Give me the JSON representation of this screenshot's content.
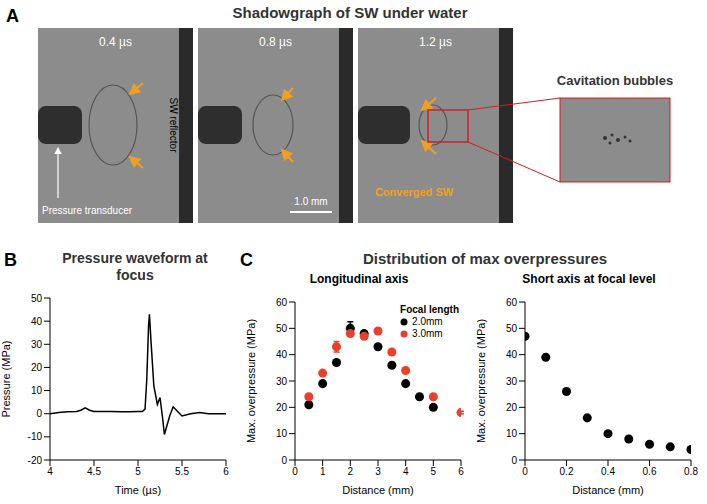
{
  "figure": {
    "letters": [
      "A",
      "B",
      "C"
    ],
    "panel_a": {
      "title": "Shadowgraph of SW under water",
      "frames": [
        "0.4 µs",
        "0.8 µs",
        "1.2 µs"
      ],
      "inset_title": "Cavitation bubbles",
      "transducer": "Pressure transducer",
      "reflector": "SW reflector",
      "scale_bar": "1.0 mm",
      "converged": "Converged SW"
    },
    "panel_c_title": "Distribution of max overpressures"
  },
  "chart_data": [
    {
      "type": "line",
      "title": "Pressure waveform at focus",
      "x_label": "Time (µs)",
      "y_label": "Pressure (MPa)",
      "x": [
        4.0,
        4.1,
        4.2,
        4.3,
        4.35,
        4.4,
        4.45,
        4.5,
        4.6,
        4.7,
        4.8,
        4.9,
        5.0,
        5.05,
        5.08,
        5.1,
        5.12,
        5.13,
        5.15,
        5.18,
        5.2,
        5.22,
        5.25,
        5.28,
        5.3,
        5.33,
        5.36,
        5.4,
        5.45,
        5.5,
        5.6,
        5.7,
        5.8,
        5.9,
        6.0
      ],
      "values": [
        0,
        0.5,
        0.8,
        1,
        1.5,
        2.5,
        1.5,
        1,
        1,
        1,
        0.8,
        0.8,
        1,
        1,
        2,
        15,
        38,
        43,
        30,
        12,
        8,
        4,
        7,
        -2,
        -9,
        -5,
        -1,
        3,
        1,
        -1,
        0,
        0.5,
        0,
        0,
        0
      ],
      "color": "#000000",
      "xlim": [
        4,
        6
      ],
      "xticks": [
        4,
        4.5,
        5,
        5.5,
        6
      ],
      "ylim": [
        -20,
        50
      ],
      "yticks": [
        -20,
        -10,
        0,
        10,
        20,
        30,
        40,
        50
      ],
      "grid": false
    },
    {
      "type": "scatter",
      "title": "Longitudinal axis",
      "x_label": "Distance (mm)",
      "y_label": "Max. overpressure (MPa)",
      "legend": "upper right",
      "legend_title": "Focal length",
      "series": [
        {
          "name": "2.0mm",
          "color": "#000000",
          "marker": "circle",
          "x": [
            0.5,
            1,
            1.5,
            2,
            2.5,
            3,
            3.5,
            4,
            4.5,
            5
          ],
          "values": [
            21,
            29,
            37,
            50,
            48,
            43,
            36,
            29,
            24,
            20
          ],
          "errors": [
            0.5,
            0.5,
            0.8,
            2.5,
            1,
            0.5,
            0.5,
            0.5,
            0.5,
            0.5
          ]
        },
        {
          "name": "3.0mm",
          "color": "#e8402a",
          "marker": "circle",
          "x": [
            0.5,
            1,
            1.5,
            2,
            2.5,
            3,
            3.5,
            4,
            5,
            6
          ],
          "values": [
            24,
            33,
            43,
            48,
            47,
            49,
            41,
            34,
            24,
            18
          ],
          "errors": [
            0.5,
            0.5,
            2,
            1,
            1,
            0.5,
            0.5,
            0.5,
            0.5,
            0.5
          ]
        }
      ],
      "xlim": [
        0,
        6
      ],
      "xticks": [
        0,
        1,
        2,
        3,
        4,
        5,
        6
      ],
      "ylim": [
        0,
        60
      ],
      "yticks": [
        0,
        10,
        20,
        30,
        40,
        50,
        60
      ],
      "grid": false
    },
    {
      "type": "scatter",
      "title": "Short axis at focal level",
      "x_label": "Distance (mm)",
      "y_label": "Max. overpressure (MPa)",
      "series": [
        {
          "color": "#000000",
          "marker": "circle",
          "x": [
            0,
            0.1,
            0.2,
            0.3,
            0.4,
            0.5,
            0.6,
            0.7,
            0.8
          ],
          "values": [
            47,
            39,
            26,
            16,
            10,
            8,
            6,
            5,
            4
          ]
        }
      ],
      "xlim": [
        0,
        0.8
      ],
      "xticks": [
        0,
        0.2,
        0.4,
        0.6,
        0.8
      ],
      "ylim": [
        0,
        60
      ],
      "yticks": [
        0,
        10,
        20,
        30,
        40,
        50,
        60
      ],
      "grid": false
    }
  ]
}
